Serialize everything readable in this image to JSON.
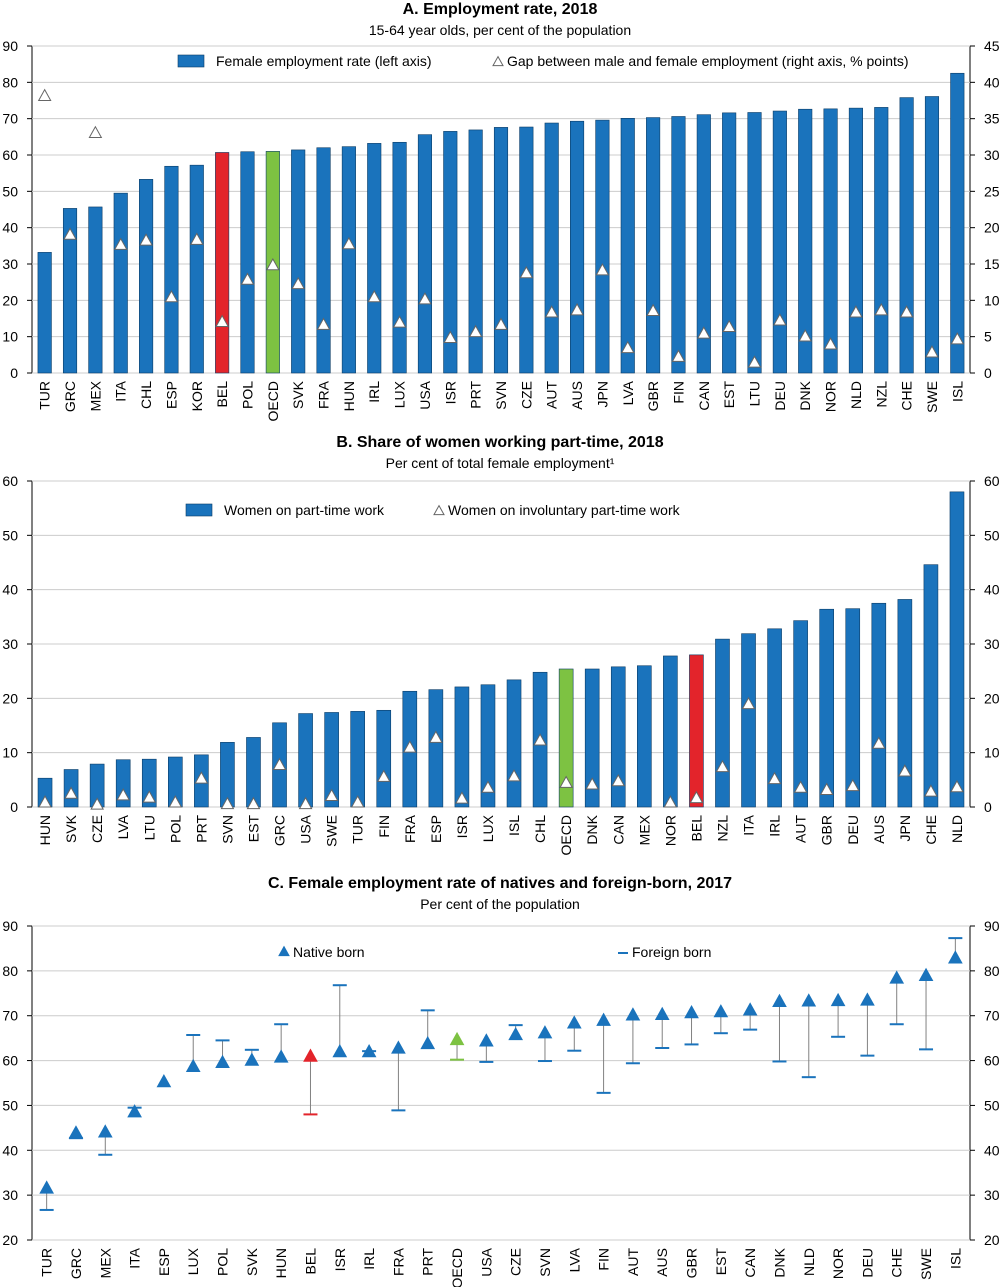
{
  "colors": {
    "bar": "#1A73BC",
    "bar_stroke": "#0B3C66",
    "highlight_bel": "#E3242B",
    "highlight_oecd": "#7DC242",
    "marker_fill": "#FFFFFF",
    "gap_marker": "#1A73BC",
    "foreign_line": "#808080",
    "grid": "#CCCCCC"
  },
  "chart_data": [
    {
      "type": "bar",
      "title": "A. Employment rate, 2018",
      "subtitle": "15-64 year olds, per cent of the population",
      "highlight": {
        "BEL": "highlight_bel",
        "OECD": "highlight_oecd"
      },
      "categories": [
        "TUR",
        "GRC",
        "MEX",
        "ITA",
        "CHL",
        "ESP",
        "KOR",
        "BEL",
        "POL",
        "OECD",
        "SVK",
        "FRA",
        "HUN",
        "IRL",
        "LUX",
        "USA",
        "ISR",
        "PRT",
        "SVN",
        "CZE",
        "AUT",
        "AUS",
        "JPN",
        "LVA",
        "GBR",
        "FIN",
        "CAN",
        "EST",
        "LTU",
        "DEU",
        "DNK",
        "NOR",
        "NLD",
        "NZL",
        "CHE",
        "SWE",
        "ISL"
      ],
      "left_axis": {
        "ylim": [
          0,
          90
        ],
        "ticks": [
          0,
          10,
          20,
          30,
          40,
          50,
          60,
          70,
          80,
          90
        ]
      },
      "right_axis": {
        "ylim": [
          0,
          45
        ],
        "ticks": [
          0,
          5,
          10,
          15,
          20,
          25,
          30,
          35,
          40,
          45
        ]
      },
      "legend": {
        "placement": "top",
        "bar_label": "Female employment rate (left axis)",
        "marker_label": "Gap between male and female employment (right axis, % points)"
      },
      "series": [
        {
          "name": "Female employment rate (left axis)",
          "axis": "left",
          "kind": "bar",
          "values": [
            33.2,
            45.3,
            45.7,
            49.5,
            53.3,
            56.9,
            57.2,
            60.7,
            60.9,
            61.0,
            61.4,
            62.0,
            62.3,
            63.2,
            63.5,
            65.6,
            66.5,
            66.9,
            67.6,
            67.7,
            68.8,
            69.3,
            69.6,
            70.1,
            70.3,
            70.6,
            71.1,
            71.6,
            71.7,
            72.1,
            72.6,
            72.7,
            72.9,
            73.1,
            75.8,
            76.1,
            82.5
          ]
        },
        {
          "name": "Gap between male and female employment (right axis, % points)",
          "axis": "right",
          "kind": "marker",
          "values": [
            38.1,
            19.0,
            33.0,
            17.6,
            18.2,
            10.4,
            18.3,
            7.0,
            12.8,
            14.8,
            12.2,
            6.6,
            17.7,
            10.4,
            6.9,
            10.1,
            4.8,
            5.6,
            6.6,
            13.7,
            8.3,
            8.6,
            14.1,
            3.4,
            8.5,
            2.2,
            5.4,
            6.3,
            1.4,
            7.2,
            5.0,
            3.9,
            8.3,
            8.6,
            8.3,
            2.8,
            4.6
          ]
        }
      ]
    },
    {
      "type": "bar",
      "title": "B. Share of women working part-time, 2018",
      "subtitle": "Per cent of total female employment¹",
      "highlight": {
        "BEL": "highlight_bel",
        "OECD": "highlight_oecd"
      },
      "categories": [
        "HUN",
        "SVK",
        "CZE",
        "LVA",
        "LTU",
        "POL",
        "PRT",
        "SVN",
        "EST",
        "GRC",
        "USA",
        "SWE",
        "TUR",
        "FIN",
        "FRA",
        "ESP",
        "ISR",
        "LUX",
        "ISL",
        "CHL",
        "OECD",
        "DNK",
        "CAN",
        "MEX",
        "NOR",
        "BEL",
        "NZL",
        "ITA",
        "IRL",
        "AUT",
        "GBR",
        "DEU",
        "AUS",
        "JPN",
        "CHE",
        "NLD"
      ],
      "left_axis": {
        "ylim": [
          0,
          60
        ],
        "ticks": [
          0,
          10,
          20,
          30,
          40,
          50,
          60
        ]
      },
      "right_axis": {
        "ylim": [
          0,
          60
        ],
        "ticks": [
          0,
          10,
          20,
          30,
          40,
          50,
          60
        ]
      },
      "legend": {
        "placement": "top-left",
        "bar_label": "Women on part-time work",
        "marker_label": "Women on involuntary part-time work"
      },
      "series": [
        {
          "name": "Women on part-time work",
          "kind": "bar",
          "values": [
            5.3,
            6.9,
            7.9,
            8.7,
            8.8,
            9.2,
            9.6,
            11.9,
            12.8,
            15.5,
            17.2,
            17.4,
            17.6,
            17.8,
            21.3,
            21.6,
            22.1,
            22.5,
            23.4,
            24.8,
            25.4,
            25.4,
            25.8,
            26.0,
            27.8,
            28.0,
            30.9,
            31.9,
            32.8,
            34.3,
            36.4,
            36.5,
            37.5,
            38.2,
            44.6,
            58.0
          ]
        },
        {
          "name": "Women on involuntary part-time work",
          "kind": "marker",
          "values": [
            0.8,
            2.4,
            0.4,
            2.1,
            1.7,
            0.8,
            5.2,
            0.5,
            0.5,
            7.7,
            0.5,
            2.0,
            0.8,
            5.5,
            10.9,
            12.7,
            1.5,
            3.5,
            5.6,
            12.2,
            4.4,
            4.1,
            4.7,
            null,
            0.8,
            1.6,
            7.3,
            18.9,
            5.1,
            3.5,
            3.1,
            3.8,
            11.6,
            6.5,
            2.8,
            3.6
          ]
        }
      ]
    },
    {
      "type": "scatter",
      "title": "C. Female employment rate of natives and foreign-born, 2017",
      "subtitle": "Per cent of the population",
      "highlight": {
        "BEL": "highlight_bel",
        "OECD": "highlight_oecd"
      },
      "categories": [
        "TUR",
        "GRC",
        "MEX",
        "ITA",
        "ESP",
        "LUX",
        "POL",
        "SVK",
        "HUN",
        "BEL",
        "ISR",
        "IRL",
        "FRA",
        "PRT",
        "OECD",
        "USA",
        "CZE",
        "SVN",
        "LVA",
        "FIN",
        "AUT",
        "AUS",
        "GBR",
        "EST",
        "CAN",
        "DNK",
        "NLD",
        "NOR",
        "DEU",
        "CHE",
        "SWE",
        "ISL"
      ],
      "left_axis": {
        "ylim": [
          20,
          90
        ],
        "ticks": [
          20,
          30,
          40,
          50,
          60,
          70,
          80,
          90
        ]
      },
      "right_axis": {
        "ylim": [
          20,
          90
        ],
        "ticks": [
          20,
          30,
          40,
          50,
          60,
          70,
          80,
          90
        ]
      },
      "legend": {
        "placement": "top",
        "native_label": "Native born",
        "foreign_label": "Foreign born"
      },
      "series": [
        {
          "name": "Native born",
          "kind": "triangle",
          "values": [
            31.5,
            43.8,
            44.0,
            48.5,
            55.2,
            58.6,
            59.5,
            60.0,
            60.7,
            60.9,
            61.9,
            61.9,
            62.7,
            63.7,
            64.6,
            64.3,
            65.7,
            66.1,
            68.3,
            68.9,
            70.1,
            70.2,
            70.6,
            70.8,
            71.2,
            73.1,
            73.2,
            73.3,
            73.4,
            78.3,
            78.9,
            82.8
          ]
        },
        {
          "name": "Foreign born",
          "kind": "dash",
          "values": [
            26.7,
            42.7,
            39.0,
            49.5,
            null,
            65.7,
            64.5,
            62.4,
            68.1,
            48.0,
            76.8,
            62.1,
            48.9,
            71.2,
            60.2,
            59.7,
            67.9,
            59.9,
            62.2,
            52.8,
            59.4,
            62.8,
            63.6,
            66.1,
            66.9,
            59.8,
            56.3,
            65.3,
            61.1,
            68.1,
            62.5,
            87.3
          ]
        }
      ]
    }
  ]
}
